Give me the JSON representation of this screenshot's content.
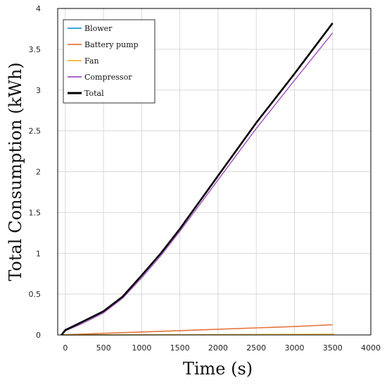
{
  "chart_data": {
    "type": "line",
    "xlabel": "Time (s)",
    "ylabel": "Total Consumption (kWh)",
    "xlim": [
      -100,
      4000
    ],
    "ylim": [
      0,
      4
    ],
    "xticks": [
      0,
      500,
      1000,
      1500,
      2000,
      2500,
      3000,
      3500,
      4000
    ],
    "yticks": [
      0,
      0.5,
      1,
      1.5,
      2,
      2.5,
      3,
      3.5,
      4
    ],
    "xtick_labels": [
      "0",
      "500",
      "1000",
      "1500",
      "2000",
      "2500",
      "3000",
      "3500",
      "4000"
    ],
    "ytick_labels": [
      "0",
      "0.5",
      "1",
      "1.5",
      "2",
      "2.5",
      "3",
      "3.5",
      "4"
    ],
    "grid": true,
    "legend_position": "top-left",
    "series": [
      {
        "name": "Blower",
        "color": "#1f9bd6",
        "x": [
          -50,
          3520
        ],
        "y": [
          0,
          0.005
        ]
      },
      {
        "name": "Battery pump",
        "color": "#e8743b",
        "x": [
          -50,
          0,
          500,
          1000,
          1500,
          2000,
          2500,
          3000,
          3500
        ],
        "y": [
          0,
          0.003,
          0.02,
          0.036,
          0.053,
          0.07,
          0.086,
          0.103,
          0.125
        ]
      },
      {
        "name": "Fan",
        "color": "#f2b431",
        "x": [
          -50,
          3520
        ],
        "y": [
          0,
          0.008
        ]
      },
      {
        "name": "Compressor",
        "color": "#a24fbf",
        "x": [
          -50,
          0,
          200,
          500,
          750,
          1000,
          1250,
          1500,
          2000,
          2500,
          3000,
          3500
        ],
        "y": [
          0,
          0.05,
          0.13,
          0.27,
          0.45,
          0.7,
          0.97,
          1.27,
          1.9,
          2.53,
          3.12,
          3.7
        ]
      },
      {
        "name": "Total",
        "color": "#000000",
        "x": [
          -50,
          0,
          200,
          500,
          750,
          1000,
          1250,
          1500,
          2000,
          2500,
          3000,
          3500
        ],
        "y": [
          0,
          0.06,
          0.15,
          0.29,
          0.47,
          0.73,
          1.0,
          1.3,
          1.95,
          2.6,
          3.2,
          3.82
        ]
      }
    ]
  }
}
